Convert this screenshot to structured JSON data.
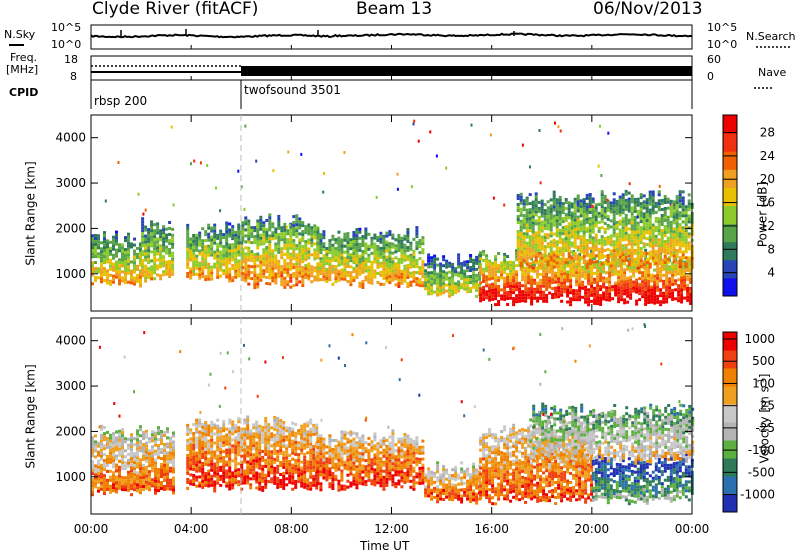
{
  "header": {
    "station": "Clyde River (fitACF)",
    "beam": "Beam 13",
    "date": "06/Nov/2013"
  },
  "noise_panel": {
    "left_label": "N.Sky",
    "right_label": "N.Search",
    "left_ticks": [
      "10^5",
      "10^0"
    ],
    "right_ticks": [
      "10^5",
      "10^0"
    ]
  },
  "freq_panel": {
    "left_label_line1": "Freq.",
    "left_label_line2": "[MHz]",
    "right_label": "Nave",
    "left_ticks": [
      "18",
      "8"
    ],
    "right_ticks": [
      "60",
      "0"
    ]
  },
  "cpid_panel": {
    "label": "CPID",
    "modes": [
      {
        "name": "rbsp 200",
        "start_hour": 0,
        "end_hour": 6
      },
      {
        "name": "twofsound 3501",
        "start_hour": 6,
        "end_hour": 24
      }
    ]
  },
  "time_axis": {
    "label": "Time UT",
    "ticks": [
      "00:00",
      "04:00",
      "08:00",
      "12:00",
      "16:00",
      "20:00",
      "00:00"
    ]
  },
  "chart_data": [
    {
      "type": "heatmap",
      "name": "Power",
      "ylabel": "Slant Range [km]",
      "xlabel": "Time UT",
      "xlim_hours": [
        0,
        24
      ],
      "ylim_km": [
        180,
        4500
      ],
      "yticks": [
        1000,
        2000,
        3000,
        4000
      ],
      "colorbar": {
        "label": "Power [dB]",
        "ticks": [
          "4",
          "8",
          "12",
          "16",
          "20",
          "24",
          "28"
        ],
        "range": [
          0,
          30
        ],
        "colors": [
          "#1010ee",
          "#2845b8",
          "#2e7a5a",
          "#58a448",
          "#8ccb2a",
          "#e8c000",
          "#f0a020",
          "#f06000",
          "#f03010",
          "#ee0000"
        ]
      },
      "features": [
        {
          "start_hour": 0.0,
          "end_hour": 2.0,
          "lo_km": 800,
          "hi_km": 1800,
          "level": 0.55
        },
        {
          "start_hour": 2.0,
          "end_hour": 3.3,
          "lo_km": 900,
          "hi_km": 2100,
          "level": 0.5
        },
        {
          "start_hour": 3.8,
          "end_hour": 6.0,
          "lo_km": 900,
          "hi_km": 2000,
          "level": 0.55
        },
        {
          "start_hour": 6.0,
          "end_hour": 9.0,
          "lo_km": 800,
          "hi_km": 2200,
          "level": 0.6
        },
        {
          "start_hour": 9.0,
          "end_hour": 13.3,
          "lo_km": 800,
          "hi_km": 1900,
          "level": 0.55
        },
        {
          "start_hour": 13.3,
          "end_hour": 15.5,
          "lo_km": 600,
          "hi_km": 1300,
          "level": 0.45
        },
        {
          "start_hour": 15.5,
          "end_hour": 24.0,
          "lo_km": 400,
          "hi_km": 1400,
          "level": 0.85
        },
        {
          "start_hour": 17.0,
          "end_hour": 24.0,
          "lo_km": 1200,
          "hi_km": 2700,
          "level": 0.55
        }
      ]
    },
    {
      "type": "heatmap",
      "name": "Velocity",
      "ylabel": "Slant Range [km]",
      "xlabel": "Time UT",
      "xlim_hours": [
        0,
        24
      ],
      "ylim_km": [
        180,
        4500
      ],
      "yticks": [
        1000,
        2000,
        3000,
        4000
      ],
      "colorbar": {
        "label": "Velocity [m s^-1]",
        "ticks": [
          "1000",
          "500",
          "100",
          "25",
          "-25",
          "-100",
          "-500",
          "-1000"
        ],
        "colors": [
          "#2030b0",
          "#2a70b0",
          "#2e7a5a",
          "#5cb040",
          "#b4b4b4",
          "#c8c8c8",
          "#f0a020",
          "#f08000",
          "#f04010",
          "#ee0000"
        ]
      },
      "features": [
        {
          "start_hour": 0.0,
          "end_hour": 3.3,
          "lo_km": 700,
          "hi_km": 2000,
          "level": 0.65
        },
        {
          "start_hour": 3.8,
          "end_hour": 9.0,
          "lo_km": 800,
          "hi_km": 2200,
          "level": 0.75
        },
        {
          "start_hour": 9.0,
          "end_hour": 13.3,
          "lo_km": 800,
          "hi_km": 1900,
          "level": 0.75
        },
        {
          "start_hour": 13.3,
          "end_hour": 15.5,
          "lo_km": 500,
          "hi_km": 1200,
          "level": 0.7
        },
        {
          "start_hour": 15.5,
          "end_hour": 20.0,
          "lo_km": 500,
          "hi_km": 2100,
          "level": 0.7
        },
        {
          "start_hour": 20.0,
          "end_hour": 24.0,
          "lo_km": 500,
          "hi_km": 1400,
          "level": 0.2
        },
        {
          "start_hour": 17.5,
          "end_hour": 24.0,
          "lo_km": 1400,
          "hi_km": 2500,
          "level": 0.45
        }
      ]
    }
  ]
}
